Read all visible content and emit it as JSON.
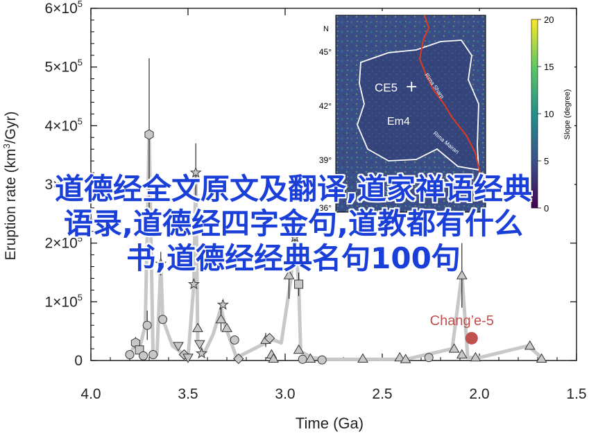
{
  "chart_data": {
    "type": "scatter",
    "xlabel": "Time (Ga)",
    "ylabel_text": "Eruption rate (km",
    "ylabel_sup": "3",
    "ylabel_end": "/Gyr)",
    "xlim": [
      4.0,
      1.5
    ],
    "ylim": [
      0,
      600000
    ],
    "x_ticks": [
      "4.0",
      "3.5",
      "3.0",
      "2.5",
      "2.0",
      "1.5"
    ],
    "x_tick_values": [
      4.0,
      3.5,
      3.0,
      2.5,
      2.0,
      1.5
    ],
    "y_ticks": [
      {
        "value": 0,
        "mant": "0",
        "exp": ""
      },
      {
        "value": 100000,
        "mant": "1×10",
        "exp": "5"
      },
      {
        "value": 200000,
        "mant": "2×10",
        "exp": "5"
      },
      {
        "value": 300000,
        "mant": "3×10",
        "exp": "5"
      },
      {
        "value": 400000,
        "mant": "4×10",
        "exp": "5"
      },
      {
        "value": 500000,
        "mant": "5×10",
        "exp": "5"
      },
      {
        "value": 600000,
        "mant": "6×10",
        "exp": "5"
      }
    ],
    "trend_line": [
      [
        3.8,
        10000
      ],
      [
        3.77,
        30000
      ],
      [
        3.75,
        20000
      ],
      [
        3.72,
        60000
      ],
      [
        3.7,
        385000
      ],
      [
        3.68,
        10000
      ],
      [
        3.66,
        10000
      ],
      [
        3.64,
        165000
      ],
      [
        3.63,
        70000
      ],
      [
        3.58,
        25000
      ],
      [
        3.5,
        5000
      ],
      [
        3.47,
        130000
      ],
      [
        3.46,
        320000
      ],
      [
        3.45,
        35000
      ],
      [
        3.42,
        10000
      ],
      [
        3.37,
        45000
      ],
      [
        3.33,
        90000
      ],
      [
        3.31,
        60000
      ],
      [
        3.25,
        5000
      ],
      [
        3.1,
        30000
      ],
      [
        3.06,
        35000
      ],
      [
        3.02,
        30000
      ],
      [
        2.97,
        140000
      ],
      [
        2.95,
        210000
      ],
      [
        2.93,
        130000
      ],
      [
        2.92,
        15000
      ],
      [
        2.86,
        5000
      ],
      [
        2.8,
        2000
      ],
      [
        2.6,
        2000
      ],
      [
        2.38,
        2000
      ],
      [
        2.14,
        20000
      ],
      [
        2.09,
        147000
      ],
      [
        2.06,
        5000
      ],
      [
        2.0,
        5000
      ],
      [
        1.75,
        25000
      ],
      [
        1.68,
        5000
      ]
    ],
    "points": [
      {
        "x": 3.8,
        "y": 10000,
        "m": "circle"
      },
      {
        "x": 3.77,
        "y": 30000,
        "m": "hex",
        "err": 10000
      },
      {
        "x": 3.75,
        "y": 18000,
        "m": "square"
      },
      {
        "x": 3.73,
        "y": 8000,
        "m": "circle"
      },
      {
        "x": 3.71,
        "y": 60000,
        "m": "circle",
        "err": 25000
      },
      {
        "x": 3.7,
        "y": 385000,
        "m": "hex",
        "err": 130000
      },
      {
        "x": 3.68,
        "y": 10000,
        "m": "circle"
      },
      {
        "x": 3.64,
        "y": 165000,
        "m": "star",
        "err": 20000
      },
      {
        "x": 3.63,
        "y": 70000,
        "m": "circle"
      },
      {
        "x": 3.55,
        "y": 25000,
        "m": "tri-down"
      },
      {
        "x": 3.52,
        "y": 10000,
        "m": "diamond"
      },
      {
        "x": 3.5,
        "y": 5000,
        "m": "tri-down"
      },
      {
        "x": 3.47,
        "y": 130000,
        "m": "star"
      },
      {
        "x": 3.46,
        "y": 320000,
        "m": "star",
        "err": 50000
      },
      {
        "x": 3.45,
        "y": 55000,
        "m": "tri-up"
      },
      {
        "x": 3.44,
        "y": 28000,
        "m": "tri-down"
      },
      {
        "x": 3.43,
        "y": 12000,
        "m": "star"
      },
      {
        "x": 3.32,
        "y": 95000,
        "m": "star"
      },
      {
        "x": 3.33,
        "y": 70000,
        "m": "tri-up",
        "err": 20000
      },
      {
        "x": 3.3,
        "y": 55000,
        "m": "tri-up"
      },
      {
        "x": 3.26,
        "y": 35000,
        "m": "circle"
      },
      {
        "x": 3.24,
        "y": 3000,
        "m": "diamond"
      },
      {
        "x": 3.1,
        "y": 35000,
        "m": "tri-up",
        "err": 12000
      },
      {
        "x": 3.08,
        "y": 38000,
        "m": "diamond"
      },
      {
        "x": 3.07,
        "y": 10000,
        "m": "tri-up"
      },
      {
        "x": 3.06,
        "y": 3000,
        "m": "tri-up"
      },
      {
        "x": 2.98,
        "y": 145000,
        "m": "tri-up",
        "err": 40000
      },
      {
        "x": 2.95,
        "y": 210000,
        "m": "star",
        "err": 30000
      },
      {
        "x": 2.93,
        "y": 130000,
        "m": "square",
        "err": 20000
      },
      {
        "x": 2.93,
        "y": 18000,
        "m": "tri-up"
      },
      {
        "x": 2.91,
        "y": 2000,
        "m": "circle"
      },
      {
        "x": 2.87,
        "y": 3000,
        "m": "tri-up"
      },
      {
        "x": 2.81,
        "y": 1000,
        "m": "circle"
      },
      {
        "x": 2.6,
        "y": 3000,
        "m": "tri-up"
      },
      {
        "x": 2.41,
        "y": 5000,
        "m": "tri-up"
      },
      {
        "x": 2.38,
        "y": 2000,
        "m": "tri-up"
      },
      {
        "x": 2.26,
        "y": 5000,
        "m": "circle"
      },
      {
        "x": 2.13,
        "y": 20000,
        "m": "tri-up"
      },
      {
        "x": 2.09,
        "y": 145000,
        "m": "tri-up",
        "err": 55000
      },
      {
        "x": 2.09,
        "y": 10000,
        "m": "tri-up"
      },
      {
        "x": 2.02,
        "y": 5000,
        "m": "tri-up"
      },
      {
        "x": 1.74,
        "y": 25000,
        "m": "tri-up"
      },
      {
        "x": 1.68,
        "y": 3000,
        "m": "tri-up"
      }
    ],
    "highlight": {
      "x": 2.04,
      "y": 38000,
      "label": "Chang’e-5",
      "color": "#c0504d"
    },
    "colors": {
      "marker_fill": "#c8c8c8",
      "trend": "#c8c8c8",
      "axis": "#000000"
    }
  },
  "inset_map": {
    "north_label": "N",
    "lat_labels": [
      "45°",
      "42°",
      "39°",
      "36°"
    ],
    "site_label": "CE5",
    "unit_label": "Em4",
    "rille_labels": [
      "Rima Sharp",
      "Rima Mairan"
    ],
    "colorbar": {
      "ticks": [
        "20",
        "15",
        "10",
        "5",
        "0"
      ],
      "label": "Slope (degree)",
      "label_shown": "ˢᶫᵒpe (degree)"
    }
  },
  "overlay": {
    "line1": "道德经全文原文及翻译,道家禅语经典",
    "line2": "语录,道德经四字金句,道教都有什么",
    "line3": "书,道德经经典名句100句"
  }
}
